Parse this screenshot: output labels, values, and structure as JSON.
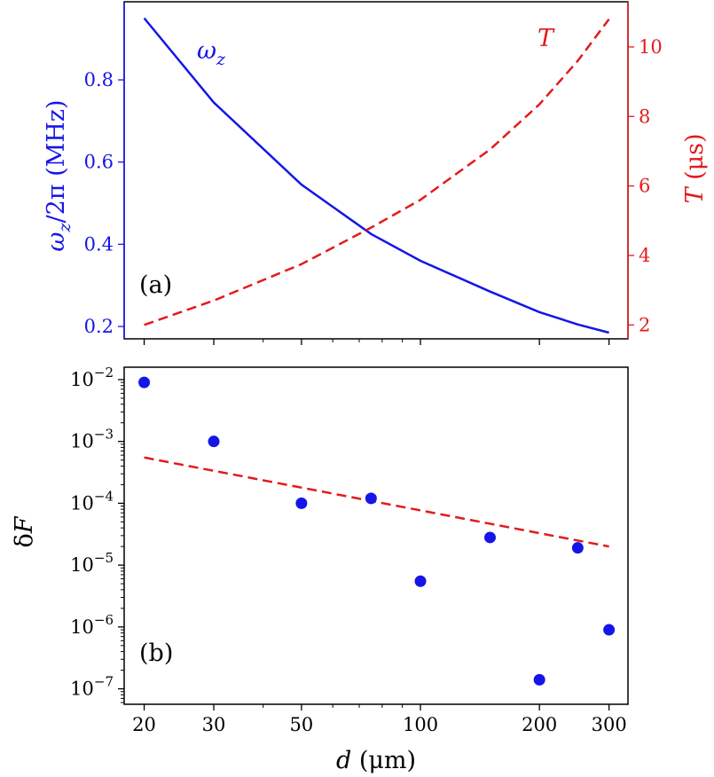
{
  "colors": {
    "blue": "#1515e8",
    "red": "#e31a1c",
    "axis": "#000000"
  },
  "chart_data": [
    {
      "panel": "(a)",
      "type": "line",
      "x_scale": "log",
      "x": [
        20,
        30,
        50,
        75,
        100,
        150,
        200,
        250,
        300
      ],
      "xlim": [
        17.8,
        335
      ],
      "xticks": [
        20,
        30,
        50,
        100,
        200,
        300
      ],
      "ylabel": "ω_z/2π (MHz)",
      "y2label": "T (μs)",
      "ylim": [
        0.17,
        0.99
      ],
      "y2lim": [
        1.6,
        11.3
      ],
      "yticks": [
        "0.2",
        "0.4",
        "0.6",
        "0.8"
      ],
      "y2ticks": [
        "2",
        "4",
        "6",
        "8",
        "10"
      ],
      "series": [
        {
          "name": "ω_z",
          "axis": "left",
          "style": "solid",
          "color": "blue",
          "values": [
            0.95,
            0.745,
            0.545,
            0.425,
            0.36,
            0.285,
            0.235,
            0.205,
            0.185
          ]
        },
        {
          "name": "T",
          "axis": "right",
          "style": "dashed",
          "color": "red",
          "values": [
            2.0,
            2.7,
            3.75,
            4.8,
            5.6,
            7.05,
            8.35,
            9.6,
            10.8
          ]
        }
      ],
      "grid": false
    },
    {
      "panel": "(b)",
      "type": "scatter",
      "x_scale": "log",
      "y_scale": "log",
      "xlabel": "d (μm)",
      "ylabel": "δF",
      "xlim": [
        17.8,
        335
      ],
      "ylim_log10": [
        -7.25,
        -1.8
      ],
      "xticks": [
        "20",
        "30",
        "50",
        "100",
        "200",
        "300"
      ],
      "yticks": [
        {
          "base": "10",
          "exp": "−2",
          "log": -2
        },
        {
          "base": "10",
          "exp": "−3",
          "log": -3
        },
        {
          "base": "10",
          "exp": "−4",
          "log": -4
        },
        {
          "base": "10",
          "exp": "−5",
          "log": -5
        },
        {
          "base": "10",
          "exp": "−6",
          "log": -6
        },
        {
          "base": "10",
          "exp": "−7",
          "log": -7
        }
      ],
      "points": {
        "color": "blue",
        "x": [
          20,
          30,
          50,
          75,
          100,
          150,
          200,
          250,
          300
        ],
        "y": [
          0.009,
          0.001,
          0.0001,
          0.00012,
          5.5e-06,
          2.8e-05,
          1.4e-07,
          1.9e-05,
          9e-07
        ]
      },
      "fit_line": {
        "color": "red",
        "style": "dashed",
        "x": [
          20,
          300
        ],
        "y": [
          0.00055,
          2e-05
        ]
      },
      "grid": false
    }
  ],
  "panel_a": {
    "label": "(a)",
    "series_label_omega": "ω",
    "series_label_omega_sub": "z",
    "series_label_T": "T",
    "ylabel_left": "ω",
    "ylabel_left_sub": "z",
    "ylabel_left_rest": "/2π (MHz)",
    "ylabel_right_T": "T",
    "ylabel_right_rest": " (μs)"
  },
  "panel_b": {
    "label": "(b)",
    "ylabel_delta": "δ",
    "ylabel_F": "F",
    "xlabel_d": "d",
    "xlabel_rest": " (μm)"
  }
}
